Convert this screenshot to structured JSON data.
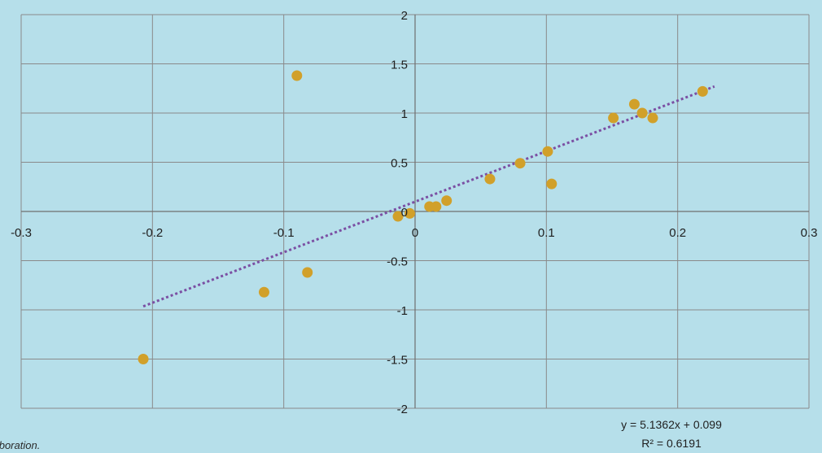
{
  "chart_data": {
    "type": "scatter",
    "title": "",
    "xlabel": "",
    "ylabel": "",
    "xlim": [
      -0.3,
      0.3
    ],
    "ylim": [
      -2,
      2
    ],
    "x_ticks": [
      -0.3,
      -0.2,
      -0.1,
      0,
      0.1,
      0.2,
      0.3
    ],
    "y_ticks": [
      -2,
      -1.5,
      -1,
      -0.5,
      0,
      0.5,
      1,
      1.5,
      2
    ],
    "grid": true,
    "colors": {
      "background": "#b6dfea",
      "plot_background": "#b6dfea",
      "grid": "#8a8a8a",
      "marker": "#d1a02a",
      "trendline": "#7b4fa3"
    },
    "series": [
      {
        "points": [
          [
            -0.207,
            -1.5
          ],
          [
            -0.115,
            -0.82
          ],
          [
            -0.09,
            1.38
          ],
          [
            -0.082,
            -0.62
          ],
          [
            -0.013,
            -0.05
          ],
          [
            -0.004,
            -0.02
          ],
          [
            0.011,
            0.05
          ],
          [
            0.016,
            0.05
          ],
          [
            0.024,
            0.11
          ],
          [
            0.057,
            0.33
          ],
          [
            0.08,
            0.49
          ],
          [
            0.101,
            0.61
          ],
          [
            0.104,
            0.28
          ],
          [
            0.151,
            0.95
          ],
          [
            0.167,
            1.09
          ],
          [
            0.173,
            1.0
          ],
          [
            0.181,
            0.95
          ],
          [
            0.219,
            1.22
          ]
        ]
      }
    ],
    "trendline": {
      "type": "linear",
      "slope": 5.1362,
      "intercept": 0.099,
      "x_range": [
        -0.207,
        0.228
      ],
      "style": "dotted",
      "equation_label": "y = 5.1362x + 0.099",
      "r2_label": "R² = 0.6191"
    },
    "source_note": "Author's' elaboration."
  }
}
